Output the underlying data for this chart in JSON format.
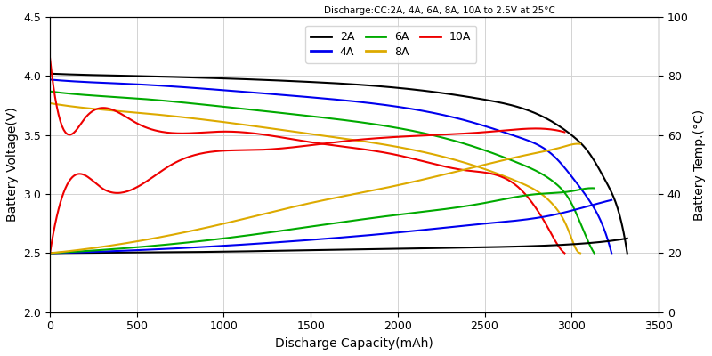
{
  "title": "Discharge:CC:2A, 4A, 6A, 8A, 10A to 2.5V at 25°C",
  "xlabel": "Discharge Capacity(mAh)",
  "ylabel_left": "Battery Voltage(V)",
  "ylabel_right": "Battery Temp.(°C)",
  "xlim": [
    0,
    3500
  ],
  "ylim_left": [
    2.0,
    4.5
  ],
  "ylim_right": [
    0,
    100
  ],
  "yticks_left": [
    2.0,
    2.5,
    3.0,
    3.5,
    4.0,
    4.5
  ],
  "yticks_right": [
    0,
    20,
    40,
    60,
    80,
    100
  ],
  "xticks": [
    0,
    500,
    1000,
    1500,
    2000,
    2500,
    3000,
    3500
  ],
  "voltage_curves": {
    "2A": {
      "color": "#000000",
      "x": [
        0,
        200,
        500,
        1000,
        1500,
        2000,
        2500,
        2800,
        3000,
        3100,
        3200,
        3280,
        3320
      ],
      "y": [
        4.02,
        4.01,
        4.0,
        3.98,
        3.95,
        3.9,
        3.8,
        3.68,
        3.5,
        3.35,
        3.1,
        2.8,
        2.5
      ]
    },
    "4A": {
      "color": "#0000EE",
      "x": [
        0,
        200,
        500,
        1000,
        1500,
        2000,
        2400,
        2700,
        2900,
        3000,
        3100,
        3200,
        3230
      ],
      "y": [
        3.97,
        3.95,
        3.93,
        3.88,
        3.82,
        3.74,
        3.62,
        3.48,
        3.32,
        3.15,
        2.95,
        2.65,
        2.5
      ]
    },
    "6A": {
      "color": "#00AA00",
      "x": [
        0,
        200,
        500,
        1000,
        1500,
        2000,
        2400,
        2700,
        2900,
        3000,
        3080,
        3130
      ],
      "y": [
        3.87,
        3.84,
        3.81,
        3.74,
        3.66,
        3.56,
        3.42,
        3.26,
        3.1,
        2.92,
        2.65,
        2.5
      ]
    },
    "8A": {
      "color": "#DDAA00",
      "x": [
        0,
        200,
        500,
        1000,
        1500,
        2000,
        2400,
        2700,
        2900,
        2980,
        3020,
        3050
      ],
      "y": [
        3.77,
        3.73,
        3.69,
        3.61,
        3.51,
        3.4,
        3.26,
        3.1,
        2.9,
        2.7,
        2.55,
        2.5
      ]
    },
    "10A": {
      "color": "#EE0000",
      "x": [
        0,
        50,
        200,
        500,
        1000,
        1500,
        2000,
        2400,
        2700,
        2870,
        2920,
        2960
      ],
      "y": [
        4.15,
        3.67,
        3.64,
        3.6,
        3.53,
        3.44,
        3.33,
        3.2,
        3.05,
        2.7,
        2.57,
        2.5
      ]
    }
  },
  "temp_curves": {
    "2A": {
      "color": "#000000",
      "x": [
        0,
        500,
        1000,
        1500,
        2000,
        2500,
        3000,
        3200,
        3320
      ],
      "y": [
        20,
        20.2,
        20.5,
        21,
        21.5,
        22,
        23,
        24,
        25
      ]
    },
    "4A": {
      "color": "#0000EE",
      "x": [
        0,
        500,
        1000,
        1500,
        2000,
        2500,
        2900,
        3100,
        3230
      ],
      "y": [
        20,
        21,
        22.5,
        24.5,
        27,
        30,
        33,
        36,
        38
      ]
    },
    "6A": {
      "color": "#00AA00",
      "x": [
        0,
        500,
        1000,
        1500,
        2000,
        2500,
        2800,
        3000,
        3100,
        3130
      ],
      "y": [
        20,
        22,
        25,
        29,
        33,
        37,
        40,
        41,
        42,
        42
      ]
    },
    "8A": {
      "color": "#DDAA00",
      "x": [
        0,
        500,
        1000,
        1500,
        2000,
        2500,
        2800,
        2950,
        3020,
        3050
      ],
      "y": [
        20,
        24,
        30,
        37,
        43,
        50,
        54,
        56,
        57,
        57
      ]
    },
    "10A": {
      "color": "#EE0000",
      "x": [
        0,
        50,
        300,
        700,
        1200,
        1700,
        2200,
        2500,
        2700,
        2870,
        2960
      ],
      "y": [
        20,
        35,
        42,
        50,
        55,
        58,
        60,
        61,
        62,
        62,
        61
      ]
    }
  },
  "legend_entries": [
    {
      "label": "2A",
      "color": "#000000"
    },
    {
      "label": "4A",
      "color": "#0000EE"
    },
    {
      "label": "6A",
      "color": "#00AA00"
    },
    {
      "label": "8A",
      "color": "#DDAA00"
    },
    {
      "label": "10A",
      "color": "#EE0000"
    }
  ]
}
